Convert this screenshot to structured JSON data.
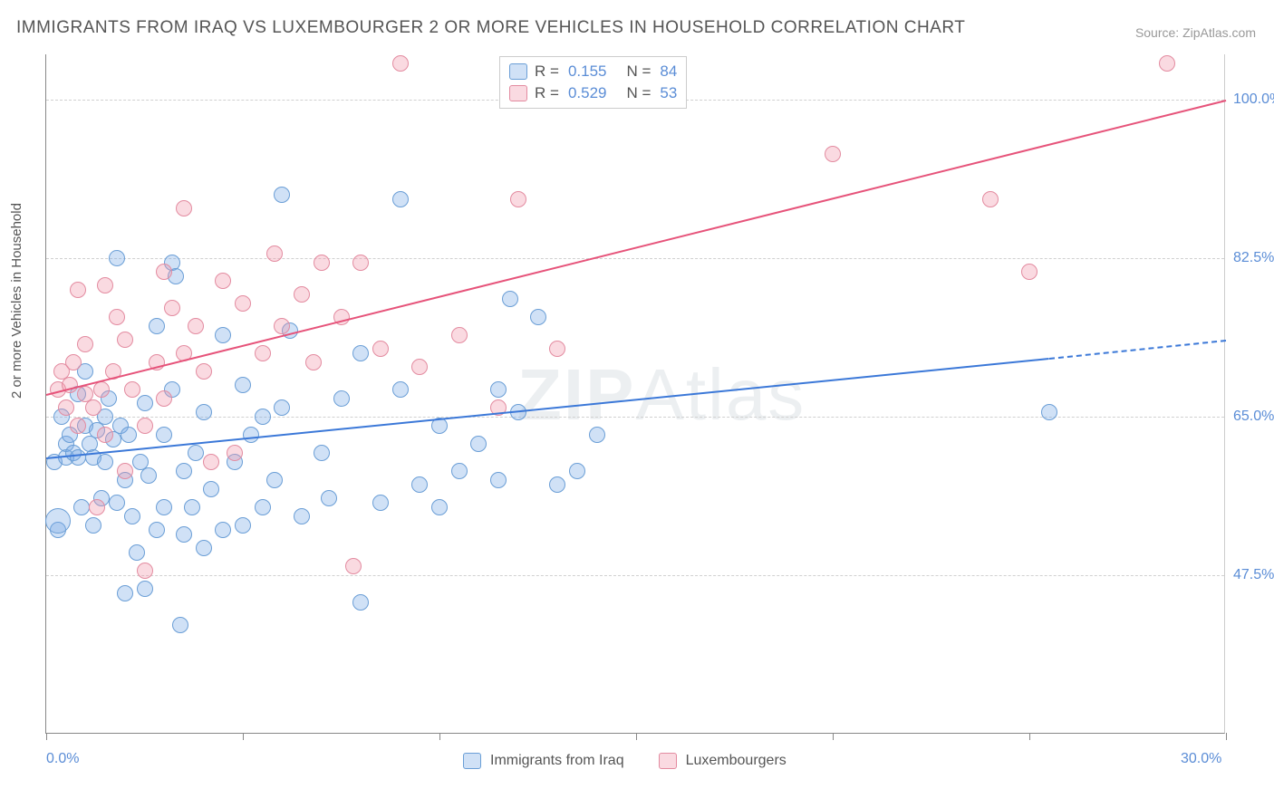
{
  "title": "IMMIGRANTS FROM IRAQ VS LUXEMBOURGER 2 OR MORE VEHICLES IN HOUSEHOLD CORRELATION CHART",
  "source": "Source: ZipAtlas.com",
  "y_axis_label": "2 or more Vehicles in Household",
  "watermark": "ZIPAtlas",
  "chart": {
    "type": "scatter",
    "xlim": [
      0,
      30
    ],
    "ylim": [
      30,
      105
    ],
    "y_gridlines": [
      47.5,
      65.0,
      82.5,
      100.0
    ],
    "y_tick_labels": [
      "47.5%",
      "65.0%",
      "82.5%",
      "100.0%"
    ],
    "x_ticks": [
      0,
      5,
      10,
      15,
      20,
      25,
      30
    ],
    "x_tick_labels": {
      "0": "0.0%",
      "30": "30.0%"
    },
    "background_color": "#ffffff",
    "grid_color": "#d0d0d0",
    "axis_color": "#888888",
    "marker_radius": 9,
    "marker_stroke_width": 1,
    "series": [
      {
        "name": "Immigrants from Iraq",
        "fill_color": "rgba(120,170,230,0.35)",
        "stroke_color": "#6a9ed6",
        "trend_color": "#3b78d8",
        "r_value": "0.155",
        "n_value": "84",
        "trend_start": {
          "x": 0,
          "y": 60.5
        },
        "trend_end": {
          "x": 25.5,
          "y": 71.5
        },
        "trend_dashed_end": {
          "x": 30,
          "y": 73.5
        },
        "points": [
          {
            "x": 0.2,
            "y": 60
          },
          {
            "x": 0.3,
            "y": 52.5
          },
          {
            "x": 0.3,
            "y": 53.5,
            "r": 14
          },
          {
            "x": 0.4,
            "y": 65
          },
          {
            "x": 0.5,
            "y": 62
          },
          {
            "x": 0.5,
            "y": 60.5
          },
          {
            "x": 0.6,
            "y": 63
          },
          {
            "x": 0.7,
            "y": 61
          },
          {
            "x": 0.8,
            "y": 67.5
          },
          {
            "x": 0.8,
            "y": 60.5
          },
          {
            "x": 0.9,
            "y": 55
          },
          {
            "x": 1.0,
            "y": 64
          },
          {
            "x": 1.0,
            "y": 70
          },
          {
            "x": 1.1,
            "y": 62
          },
          {
            "x": 1.2,
            "y": 53
          },
          {
            "x": 1.2,
            "y": 60.5
          },
          {
            "x": 1.3,
            "y": 63.5
          },
          {
            "x": 1.4,
            "y": 56
          },
          {
            "x": 1.5,
            "y": 65
          },
          {
            "x": 1.5,
            "y": 60
          },
          {
            "x": 1.6,
            "y": 67
          },
          {
            "x": 1.7,
            "y": 62.5
          },
          {
            "x": 1.8,
            "y": 55.5
          },
          {
            "x": 1.8,
            "y": 82.5
          },
          {
            "x": 1.9,
            "y": 64
          },
          {
            "x": 2.0,
            "y": 58
          },
          {
            "x": 2.0,
            "y": 45.5
          },
          {
            "x": 2.1,
            "y": 63
          },
          {
            "x": 2.2,
            "y": 54
          },
          {
            "x": 2.3,
            "y": 50
          },
          {
            "x": 2.4,
            "y": 60
          },
          {
            "x": 2.5,
            "y": 66.5
          },
          {
            "x": 2.5,
            "y": 46
          },
          {
            "x": 2.6,
            "y": 58.5
          },
          {
            "x": 2.8,
            "y": 52.5
          },
          {
            "x": 2.8,
            "y": 75
          },
          {
            "x": 3.0,
            "y": 63
          },
          {
            "x": 3.0,
            "y": 55
          },
          {
            "x": 3.2,
            "y": 68
          },
          {
            "x": 3.2,
            "y": 82
          },
          {
            "x": 3.3,
            "y": 80.5
          },
          {
            "x": 3.4,
            "y": 42
          },
          {
            "x": 3.5,
            "y": 59
          },
          {
            "x": 3.5,
            "y": 52
          },
          {
            "x": 3.7,
            "y": 55
          },
          {
            "x": 3.8,
            "y": 61
          },
          {
            "x": 4.0,
            "y": 65.5
          },
          {
            "x": 4.0,
            "y": 50.5
          },
          {
            "x": 4.2,
            "y": 57
          },
          {
            "x": 4.5,
            "y": 52.5
          },
          {
            "x": 4.5,
            "y": 74
          },
          {
            "x": 4.8,
            "y": 60
          },
          {
            "x": 5.0,
            "y": 68.5
          },
          {
            "x": 5.0,
            "y": 53
          },
          {
            "x": 5.2,
            "y": 63
          },
          {
            "x": 5.5,
            "y": 65
          },
          {
            "x": 5.5,
            "y": 55
          },
          {
            "x": 5.8,
            "y": 58
          },
          {
            "x": 6.0,
            "y": 89.5
          },
          {
            "x": 6.0,
            "y": 66
          },
          {
            "x": 6.2,
            "y": 74.5
          },
          {
            "x": 6.5,
            "y": 54
          },
          {
            "x": 7.0,
            "y": 61
          },
          {
            "x": 7.2,
            "y": 56
          },
          {
            "x": 7.5,
            "y": 67
          },
          {
            "x": 8.0,
            "y": 72
          },
          {
            "x": 8.0,
            "y": 44.5
          },
          {
            "x": 8.5,
            "y": 55.5
          },
          {
            "x": 9.0,
            "y": 89
          },
          {
            "x": 9.0,
            "y": 68
          },
          {
            "x": 9.5,
            "y": 57.5
          },
          {
            "x": 10.0,
            "y": 55
          },
          {
            "x": 10.0,
            "y": 64
          },
          {
            "x": 10.5,
            "y": 59
          },
          {
            "x": 11.0,
            "y": 62
          },
          {
            "x": 11.5,
            "y": 68
          },
          {
            "x": 11.5,
            "y": 58
          },
          {
            "x": 11.8,
            "y": 78
          },
          {
            "x": 12.0,
            "y": 65.5
          },
          {
            "x": 12.5,
            "y": 76
          },
          {
            "x": 13.0,
            "y": 57.5
          },
          {
            "x": 13.5,
            "y": 59
          },
          {
            "x": 14.0,
            "y": 63
          },
          {
            "x": 25.5,
            "y": 65.5
          }
        ]
      },
      {
        "name": "Luxembourgers",
        "fill_color": "rgba(240,150,170,0.35)",
        "stroke_color": "#e38ba0",
        "trend_color": "#e6537a",
        "r_value": "0.529",
        "n_value": "53",
        "trend_start": {
          "x": 0,
          "y": 67.5
        },
        "trend_end": {
          "x": 30,
          "y": 100
        },
        "points": [
          {
            "x": 0.3,
            "y": 68
          },
          {
            "x": 0.4,
            "y": 70
          },
          {
            "x": 0.5,
            "y": 66
          },
          {
            "x": 0.6,
            "y": 68.5
          },
          {
            "x": 0.7,
            "y": 71
          },
          {
            "x": 0.8,
            "y": 64
          },
          {
            "x": 0.8,
            "y": 79
          },
          {
            "x": 1.0,
            "y": 67.5
          },
          {
            "x": 1.0,
            "y": 73
          },
          {
            "x": 1.2,
            "y": 66
          },
          {
            "x": 1.3,
            "y": 55
          },
          {
            "x": 1.4,
            "y": 68
          },
          {
            "x": 1.5,
            "y": 63
          },
          {
            "x": 1.5,
            "y": 79.5
          },
          {
            "x": 1.7,
            "y": 70
          },
          {
            "x": 1.8,
            "y": 76
          },
          {
            "x": 2.0,
            "y": 73.5
          },
          {
            "x": 2.0,
            "y": 59
          },
          {
            "x": 2.2,
            "y": 68
          },
          {
            "x": 2.5,
            "y": 64
          },
          {
            "x": 2.5,
            "y": 48
          },
          {
            "x": 2.8,
            "y": 71
          },
          {
            "x": 3.0,
            "y": 67
          },
          {
            "x": 3.0,
            "y": 81
          },
          {
            "x": 3.2,
            "y": 77
          },
          {
            "x": 3.5,
            "y": 72
          },
          {
            "x": 3.5,
            "y": 88
          },
          {
            "x": 3.8,
            "y": 75
          },
          {
            "x": 4.0,
            "y": 70
          },
          {
            "x": 4.2,
            "y": 60
          },
          {
            "x": 4.5,
            "y": 80
          },
          {
            "x": 4.8,
            "y": 61
          },
          {
            "x": 5.0,
            "y": 77.5
          },
          {
            "x": 5.5,
            "y": 72
          },
          {
            "x": 5.8,
            "y": 83
          },
          {
            "x": 6.0,
            "y": 75
          },
          {
            "x": 6.5,
            "y": 78.5
          },
          {
            "x": 6.8,
            "y": 71
          },
          {
            "x": 7.0,
            "y": 82
          },
          {
            "x": 7.5,
            "y": 76
          },
          {
            "x": 7.8,
            "y": 48.5
          },
          {
            "x": 8.0,
            "y": 82
          },
          {
            "x": 8.5,
            "y": 72.5
          },
          {
            "x": 9.0,
            "y": 104
          },
          {
            "x": 9.5,
            "y": 70.5
          },
          {
            "x": 10.5,
            "y": 74
          },
          {
            "x": 11.5,
            "y": 66
          },
          {
            "x": 12.0,
            "y": 89
          },
          {
            "x": 13.0,
            "y": 72.5
          },
          {
            "x": 20.0,
            "y": 94
          },
          {
            "x": 24.0,
            "y": 89
          },
          {
            "x": 25.0,
            "y": 81
          },
          {
            "x": 28.5,
            "y": 104
          }
        ]
      }
    ]
  },
  "stat_legend": {
    "r_label": "R  =",
    "n_label": "N  ="
  },
  "series_legend_labels": [
    "Immigrants from Iraq",
    "Luxembourgers"
  ]
}
